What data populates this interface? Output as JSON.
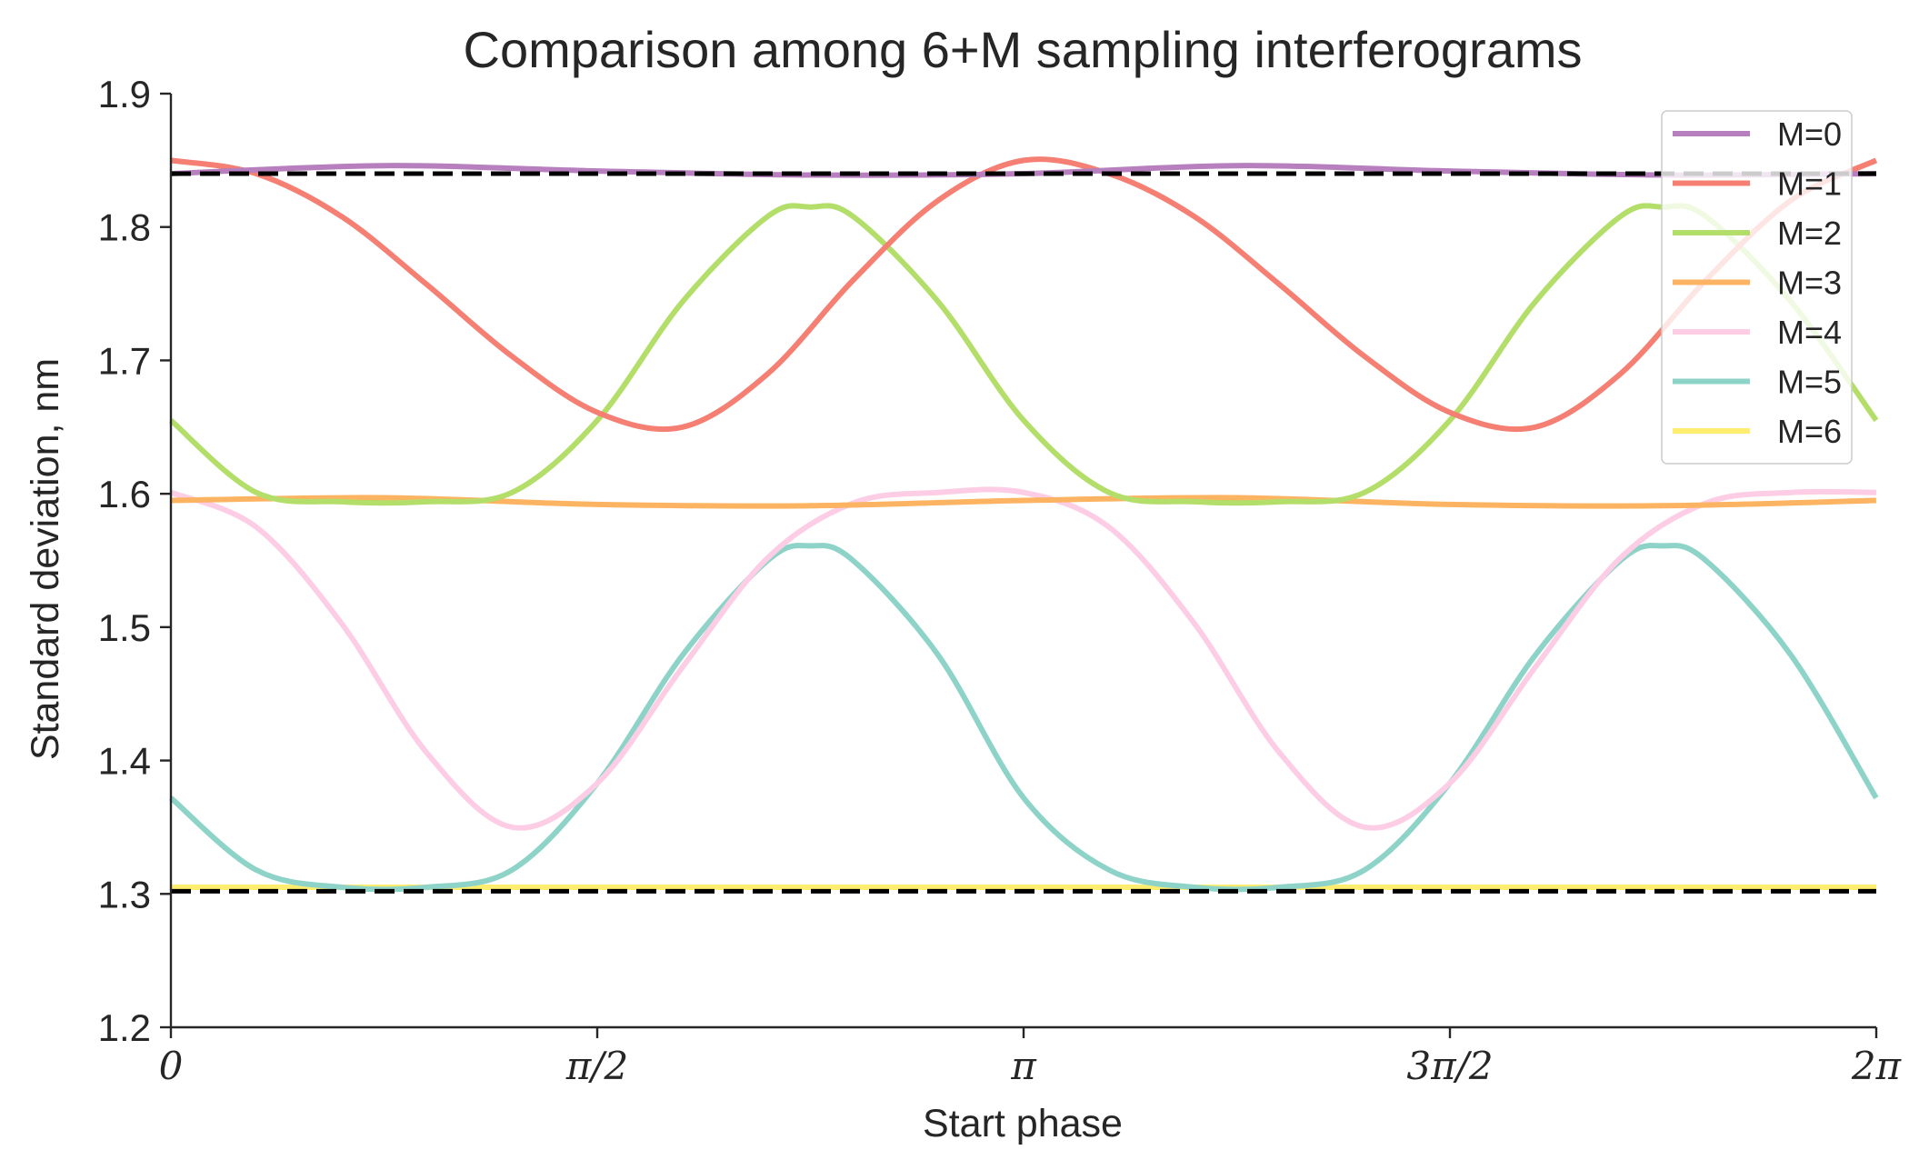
{
  "chart_data": {
    "type": "line",
    "title": "Comparison among 6+M sampling interferograms",
    "xlabel": "Start phase",
    "ylabel": "Standard deviation, nm",
    "xlim": [
      0,
      6.283185
    ],
    "ylim": [
      1.2,
      1.9
    ],
    "xticks": [
      {
        "value": 0,
        "label": "0"
      },
      {
        "value": 1.570796,
        "label": "π/2"
      },
      {
        "value": 3.141593,
        "label": "π"
      },
      {
        "value": 4.712389,
        "label": "3π/2"
      },
      {
        "value": 6.283185,
        "label": "2π"
      }
    ],
    "yticks": [
      {
        "value": 1.2,
        "label": "1.2"
      },
      {
        "value": 1.3,
        "label": "1.3"
      },
      {
        "value": 1.4,
        "label": "1.4"
      },
      {
        "value": 1.5,
        "label": "1.5"
      },
      {
        "value": 1.6,
        "label": "1.6"
      },
      {
        "value": 1.7,
        "label": "1.7"
      },
      {
        "value": 1.8,
        "label": "1.8"
      },
      {
        "value": 1.9,
        "label": "1.9"
      }
    ],
    "legend_position": "top-right",
    "grid": false,
    "series": [
      {
        "name": "M=0",
        "color": "#b77fbe",
        "x": [
          0,
          0.785,
          1.571,
          2.356,
          3.142,
          3.927,
          4.712,
          5.498,
          6.283
        ],
        "y": [
          1.84,
          1.846,
          1.842,
          1.839,
          1.84,
          1.846,
          1.842,
          1.839,
          1.84
        ]
      },
      {
        "name": "M=1",
        "color": "#f47f72",
        "x": [
          0,
          0.314,
          0.628,
          0.942,
          1.257,
          1.571,
          1.885,
          2.199,
          2.513,
          2.827,
          3.142,
          3.456,
          3.77,
          4.084,
          4.398,
          4.712,
          5.027,
          5.341,
          5.655,
          5.969,
          6.283
        ],
        "y": [
          1.85,
          1.84,
          1.808,
          1.757,
          1.703,
          1.661,
          1.65,
          1.69,
          1.76,
          1.82,
          1.85,
          1.84,
          1.808,
          1.757,
          1.703,
          1.661,
          1.65,
          1.69,
          1.76,
          1.82,
          1.85
        ]
      },
      {
        "name": "M=2",
        "color": "#b3de69",
        "x": [
          0,
          0.314,
          0.628,
          0.942,
          1.257,
          1.571,
          1.885,
          2.199,
          2.356,
          2.513,
          2.827,
          3.142,
          3.456,
          3.77,
          4.084,
          4.398,
          4.712,
          5.027,
          5.341,
          5.498,
          5.655,
          5.969,
          6.283
        ],
        "y": [
          1.655,
          1.601,
          1.594,
          1.594,
          1.601,
          1.655,
          1.744,
          1.808,
          1.815,
          1.808,
          1.744,
          1.655,
          1.601,
          1.594,
          1.594,
          1.601,
          1.655,
          1.744,
          1.808,
          1.815,
          1.808,
          1.744,
          1.655
        ]
      },
      {
        "name": "M=3",
        "color": "#fdb462",
        "x": [
          0,
          0.785,
          1.571,
          2.356,
          3.142,
          3.927,
          4.712,
          5.498,
          6.283
        ],
        "y": [
          1.595,
          1.597,
          1.592,
          1.591,
          1.595,
          1.597,
          1.592,
          1.591,
          1.595
        ]
      },
      {
        "name": "M=4",
        "color": "#fccde5",
        "x": [
          0,
          0.314,
          0.628,
          0.942,
          1.257,
          1.571,
          1.885,
          2.199,
          2.513,
          2.827,
          3.142,
          3.456,
          3.77,
          4.084,
          4.398,
          4.712,
          5.027,
          5.341,
          5.655,
          5.969,
          6.283
        ],
        "y": [
          1.601,
          1.575,
          1.503,
          1.406,
          1.35,
          1.383,
          1.47,
          1.552,
          1.593,
          1.601,
          1.601,
          1.575,
          1.503,
          1.406,
          1.35,
          1.383,
          1.47,
          1.552,
          1.593,
          1.601,
          1.601
        ]
      },
      {
        "name": "M=5",
        "color": "#8dd3c7",
        "x": [
          0,
          0.314,
          0.628,
          0.942,
          1.257,
          1.571,
          1.885,
          2.199,
          2.356,
          2.513,
          2.827,
          3.142,
          3.456,
          3.77,
          4.084,
          4.398,
          4.712,
          5.027,
          5.341,
          5.498,
          5.655,
          5.969,
          6.283
        ],
        "y": [
          1.372,
          1.318,
          1.305,
          1.305,
          1.318,
          1.383,
          1.479,
          1.55,
          1.561,
          1.55,
          1.479,
          1.372,
          1.318,
          1.305,
          1.305,
          1.318,
          1.383,
          1.479,
          1.55,
          1.561,
          1.55,
          1.479,
          1.372
        ]
      },
      {
        "name": "M=6",
        "color": "#ffed6f",
        "x": [
          0,
          6.283
        ],
        "y": [
          1.305,
          1.305
        ]
      }
    ],
    "reference_lines": [
      {
        "y": 1.84,
        "color": "#000000",
        "style": "dashed"
      },
      {
        "y": 1.302,
        "color": "#000000",
        "style": "dashed"
      }
    ]
  }
}
